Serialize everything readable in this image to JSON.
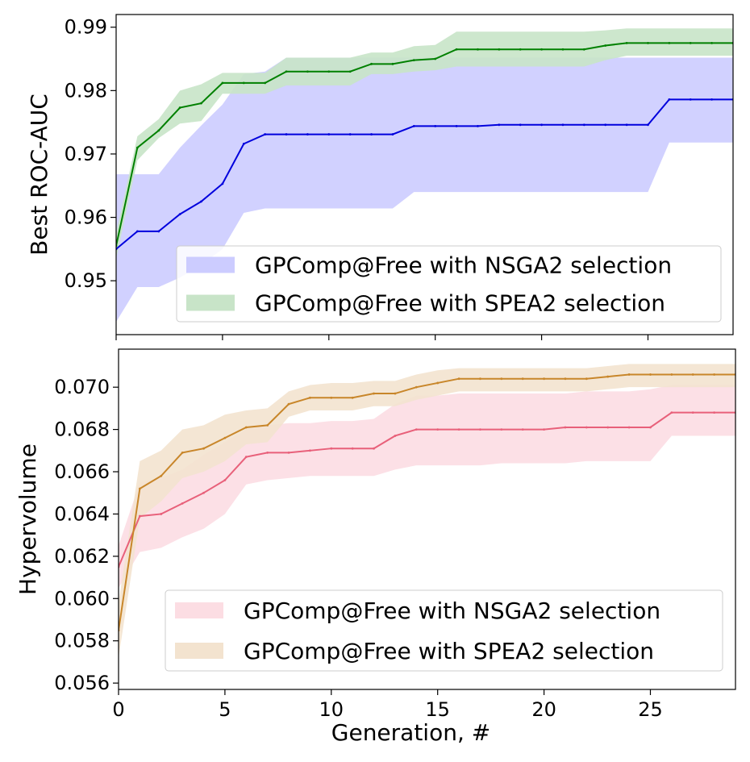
{
  "chart_data": [
    {
      "type": "line",
      "title": "",
      "xlabel": "",
      "ylabel": "Best ROC-AUC",
      "xlim": [
        0,
        29
      ],
      "ylim": [
        0.9415,
        0.992
      ],
      "x_tick_labels_visible": false,
      "xticks": [
        0,
        5,
        10,
        15,
        20,
        25
      ],
      "yticks": [
        0.95,
        0.96,
        0.97,
        0.98,
        0.99
      ],
      "ytick_labels": [
        "0.95",
        "0.96",
        "0.97",
        "0.98",
        "0.99"
      ],
      "grid": false,
      "legend_position": "lower-right",
      "x": [
        0,
        1,
        2,
        3,
        4,
        5,
        6,
        7,
        8,
        9,
        10,
        11,
        12,
        13,
        14,
        15,
        16,
        17,
        18,
        19,
        20,
        21,
        22,
        23,
        24,
        25,
        26,
        27,
        28,
        29
      ],
      "series": [
        {
          "name": "GPComp@Free with NSGA2 selection",
          "line_color": "#0000dd",
          "band_color": "#ccccff",
          "values": [
            0.955,
            0.9578,
            0.9578,
            0.9605,
            0.9625,
            0.9653,
            0.9716,
            0.9731,
            0.9731,
            0.9731,
            0.9731,
            0.9731,
            0.9731,
            0.9731,
            0.9744,
            0.9744,
            0.9744,
            0.9744,
            0.9746,
            0.9746,
            0.9746,
            0.9746,
            0.9746,
            0.9746,
            0.9746,
            0.9746,
            0.9786,
            0.9786,
            0.9786,
            0.9786
          ],
          "lower": [
            0.9435,
            0.949,
            0.949,
            0.9505,
            0.9525,
            0.955,
            0.9607,
            0.9614,
            0.9614,
            0.9614,
            0.9614,
            0.9614,
            0.9614,
            0.9614,
            0.964,
            0.964,
            0.964,
            0.964,
            0.964,
            0.964,
            0.964,
            0.964,
            0.964,
            0.964,
            0.964,
            0.964,
            0.9718,
            0.9718,
            0.9718,
            0.9718
          ],
          "upper": [
            0.9668,
            0.9668,
            0.9668,
            0.971,
            0.9745,
            0.9778,
            0.9826,
            0.983,
            0.9852,
            0.9852,
            0.9852,
            0.9852,
            0.9852,
            0.9852,
            0.9852,
            0.9852,
            0.9852,
            0.9852,
            0.9852,
            0.9852,
            0.9852,
            0.9852,
            0.9852,
            0.9852,
            0.9852,
            0.9852,
            0.9852,
            0.9852,
            0.9852,
            0.9852
          ]
        },
        {
          "name": "GPComp@Free with SPEA2 selection",
          "line_color": "#008000",
          "band_color": "#c8e4c8",
          "values": [
            0.9555,
            0.971,
            0.9737,
            0.9773,
            0.978,
            0.9812,
            0.9812,
            0.9812,
            0.983,
            0.983,
            0.983,
            0.983,
            0.9842,
            0.9842,
            0.9848,
            0.985,
            0.9865,
            0.9865,
            0.9865,
            0.9865,
            0.9865,
            0.9865,
            0.9865,
            0.9871,
            0.9875,
            0.9875,
            0.9875,
            0.9875,
            0.9875,
            0.9875
          ],
          "lower": [
            0.9535,
            0.969,
            0.9725,
            0.9748,
            0.9752,
            0.9795,
            0.9795,
            0.9795,
            0.9808,
            0.9808,
            0.9808,
            0.9808,
            0.9826,
            0.9826,
            0.983,
            0.9832,
            0.9838,
            0.9838,
            0.9838,
            0.9838,
            0.9838,
            0.9838,
            0.9838,
            0.9848,
            0.9855,
            0.9855,
            0.9855,
            0.9855,
            0.9855,
            0.9855
          ],
          "upper": [
            0.9575,
            0.9728,
            0.9755,
            0.98,
            0.981,
            0.9828,
            0.9828,
            0.9828,
            0.9852,
            0.9852,
            0.9852,
            0.9852,
            0.986,
            0.986,
            0.987,
            0.9872,
            0.9893,
            0.9893,
            0.9893,
            0.9893,
            0.9893,
            0.9893,
            0.9893,
            0.9895,
            0.9898,
            0.9898,
            0.9898,
            0.9898,
            0.9898,
            0.9898
          ]
        }
      ]
    },
    {
      "type": "line",
      "title": "",
      "xlabel": "Generation, #",
      "ylabel": "Hypervolume",
      "xlim": [
        0,
        29
      ],
      "ylim": [
        0.0557,
        0.0718
      ],
      "xticks": [
        0,
        5,
        10,
        15,
        20,
        25
      ],
      "xtick_labels": [
        "0",
        "5",
        "10",
        "15",
        "20",
        "25"
      ],
      "yticks": [
        0.056,
        0.058,
        0.06,
        0.062,
        0.064,
        0.066,
        0.068,
        0.07
      ],
      "ytick_labels": [
        "0.056",
        "0.058",
        "0.060",
        "0.062",
        "0.064",
        "0.066",
        "0.068",
        "0.070"
      ],
      "grid": false,
      "legend_position": "lower-right",
      "x": [
        0,
        1,
        2,
        3,
        4,
        5,
        6,
        7,
        8,
        9,
        10,
        11,
        12,
        13,
        14,
        15,
        16,
        17,
        18,
        19,
        20,
        21,
        22,
        23,
        24,
        25,
        26,
        27,
        28,
        29
      ],
      "series": [
        {
          "name": "GPComp@Free with NSGA2 selection",
          "line_color": "#e8607a",
          "band_color": "#fcdde3",
          "values": [
            0.0615,
            0.0639,
            0.064,
            0.0645,
            0.065,
            0.0656,
            0.0667,
            0.0669,
            0.0669,
            0.067,
            0.0671,
            0.0671,
            0.0671,
            0.0677,
            0.068,
            0.068,
            0.068,
            0.068,
            0.068,
            0.068,
            0.068,
            0.0681,
            0.0681,
            0.0681,
            0.0681,
            0.0681,
            0.0688,
            0.0688,
            0.0688,
            0.0688
          ],
          "lower": [
            0.0605,
            0.0622,
            0.0624,
            0.0629,
            0.0633,
            0.064,
            0.0654,
            0.0656,
            0.0657,
            0.0658,
            0.0658,
            0.0658,
            0.0658,
            0.0661,
            0.0663,
            0.0663,
            0.0663,
            0.0663,
            0.0664,
            0.0664,
            0.0664,
            0.0664,
            0.0665,
            0.0665,
            0.0665,
            0.0665,
            0.0677,
            0.0677,
            0.0677,
            0.0677
          ],
          "upper": [
            0.0625,
            0.0655,
            0.0657,
            0.0661,
            0.0668,
            0.0674,
            0.068,
            0.0682,
            0.0683,
            0.0683,
            0.0684,
            0.0684,
            0.0685,
            0.0692,
            0.0696,
            0.0696,
            0.0697,
            0.0697,
            0.0697,
            0.0697,
            0.0697,
            0.0697,
            0.0698,
            0.0698,
            0.0698,
            0.0699,
            0.0701,
            0.0701,
            0.0701,
            0.0701
          ]
        },
        {
          "name": "GPComp@Free with SPEA2 selection",
          "line_color": "#c8862a",
          "band_color": "#f3e3cf",
          "values": [
            0.0585,
            0.0652,
            0.0658,
            0.0669,
            0.0671,
            0.0676,
            0.0681,
            0.0682,
            0.0692,
            0.0695,
            0.0695,
            0.0695,
            0.0697,
            0.0697,
            0.07,
            0.0702,
            0.0704,
            0.0704,
            0.0704,
            0.0704,
            0.0704,
            0.0704,
            0.0704,
            0.0705,
            0.0706,
            0.0706,
            0.0706,
            0.0706,
            0.0706,
            0.0706
          ],
          "lower": [
            0.0572,
            0.0638,
            0.0646,
            0.0657,
            0.066,
            0.0665,
            0.0673,
            0.0674,
            0.0686,
            0.0689,
            0.0689,
            0.0689,
            0.0691,
            0.0691,
            0.0694,
            0.0696,
            0.0698,
            0.0698,
            0.0698,
            0.0698,
            0.0698,
            0.0698,
            0.0698,
            0.0699,
            0.07,
            0.07,
            0.07,
            0.07,
            0.07,
            0.07
          ],
          "upper": [
            0.0598,
            0.0665,
            0.067,
            0.068,
            0.0682,
            0.0687,
            0.0689,
            0.069,
            0.0698,
            0.0701,
            0.0702,
            0.0702,
            0.0703,
            0.0703,
            0.0706,
            0.0708,
            0.0709,
            0.0709,
            0.0709,
            0.0709,
            0.0709,
            0.0709,
            0.0709,
            0.071,
            0.0711,
            0.0711,
            0.0711,
            0.0711,
            0.0711,
            0.0711
          ]
        }
      ]
    }
  ]
}
